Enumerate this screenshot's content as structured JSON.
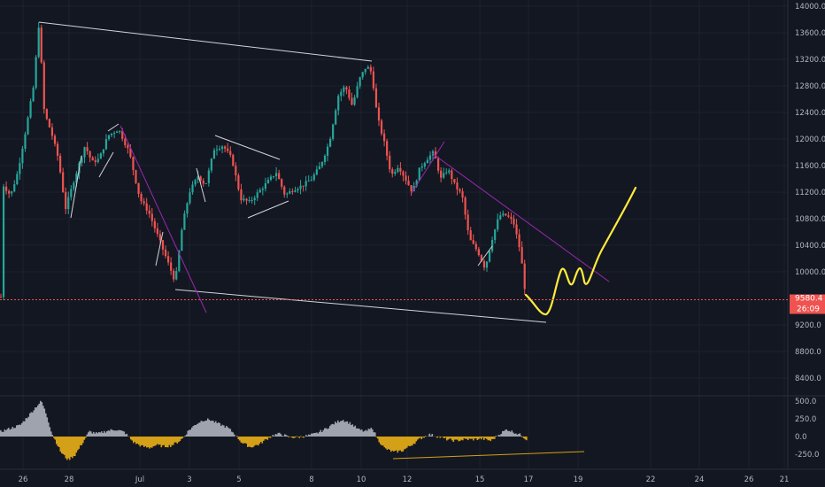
{
  "chart_data": [
    {
      "type": "candlestick",
      "title": "",
      "x_ticks": [
        "26",
        "28",
        "Jul",
        "3",
        "5",
        "8",
        "10",
        "12",
        "15",
        "17",
        "19",
        "22",
        "24",
        "26",
        "21"
      ],
      "y_ticks": [
        "14000.0",
        "13600.0",
        "13200.0",
        "12800.0",
        "12400.0",
        "12000.0",
        "11600.0",
        "11200.0",
        "10800.0",
        "10400.0",
        "10000.0",
        "9200.0",
        "8800.0",
        "8400.0"
      ],
      "y_tick_values": [
        14000,
        13600,
        13200,
        12800,
        12400,
        12000,
        11600,
        11200,
        10800,
        10400,
        10000,
        9200,
        8800,
        8400
      ],
      "ylim": [
        8200,
        14100
      ],
      "x_domain": [
        0,
        940
      ],
      "last_price_label": "9580.4",
      "countdown_label": "26:09",
      "last_price": 9580,
      "price_line_color": "#ef5350",
      "up_color": "#26a69a",
      "down_color": "#ef5350",
      "anchors": [
        [
          4,
          11300
        ],
        [
          12,
          11150
        ],
        [
          20,
          11500
        ],
        [
          30,
          12200
        ],
        [
          38,
          12800
        ],
        [
          44,
          13750
        ],
        [
          50,
          12400
        ],
        [
          58,
          12100
        ],
        [
          66,
          11700
        ],
        [
          74,
          10950
        ],
        [
          84,
          11400
        ],
        [
          96,
          11900
        ],
        [
          104,
          11650
        ],
        [
          112,
          11700
        ],
        [
          122,
          12050
        ],
        [
          134,
          12150
        ],
        [
          146,
          11800
        ],
        [
          158,
          11100
        ],
        [
          168,
          10900
        ],
        [
          178,
          10550
        ],
        [
          188,
          10200
        ],
        [
          198,
          9850
        ],
        [
          206,
          10700
        ],
        [
          214,
          11200
        ],
        [
          224,
          11450
        ],
        [
          232,
          11300
        ],
        [
          242,
          11850
        ],
        [
          252,
          11900
        ],
        [
          262,
          11700
        ],
        [
          272,
          11100
        ],
        [
          282,
          11050
        ],
        [
          292,
          11200
        ],
        [
          302,
          11350
        ],
        [
          312,
          11500
        ],
        [
          322,
          11150
        ],
        [
          332,
          11250
        ],
        [
          342,
          11300
        ],
        [
          352,
          11400
        ],
        [
          362,
          11600
        ],
        [
          372,
          11950
        ],
        [
          382,
          12650
        ],
        [
          390,
          12800
        ],
        [
          398,
          12500
        ],
        [
          406,
          12900
        ],
        [
          414,
          13100
        ],
        [
          420,
          13000
        ],
        [
          426,
          12350
        ],
        [
          434,
          11950
        ],
        [
          442,
          11450
        ],
        [
          450,
          11600
        ],
        [
          458,
          11400
        ],
        [
          466,
          11200
        ],
        [
          474,
          11550
        ],
        [
          482,
          11700
        ],
        [
          490,
          11800
        ],
        [
          498,
          11400
        ],
        [
          506,
          11550
        ],
        [
          514,
          11300
        ],
        [
          522,
          11150
        ],
        [
          530,
          10500
        ],
        [
          540,
          10300
        ],
        [
          548,
          10050
        ],
        [
          556,
          10500
        ],
        [
          564,
          10850
        ],
        [
          572,
          10850
        ],
        [
          580,
          10750
        ],
        [
          588,
          10300
        ],
        [
          594,
          9620
        ]
      ],
      "indicator": {
        "y_ticks": [
          "500.0",
          "250.0",
          "0.0",
          "-250.0"
        ],
        "y_tick_values": [
          500,
          250,
          0,
          -250
        ],
        "ylim": [
          -400,
          620
        ],
        "positive_color": "#9ea3ad",
        "negative_color": "#d4a017",
        "anchors": [
          [
            0,
            70
          ],
          [
            12,
            120
          ],
          [
            22,
            160
          ],
          [
            32,
            300
          ],
          [
            40,
            420
          ],
          [
            46,
            500
          ],
          [
            52,
            300
          ],
          [
            58,
            40
          ],
          [
            62,
            -60
          ],
          [
            68,
            -220
          ],
          [
            76,
            -330
          ],
          [
            84,
            -260
          ],
          [
            92,
            -100
          ],
          [
            100,
            70
          ],
          [
            110,
            40
          ],
          [
            120,
            80
          ],
          [
            130,
            100
          ],
          [
            140,
            60
          ],
          [
            150,
            -80
          ],
          [
            160,
            -140
          ],
          [
            168,
            -160
          ],
          [
            176,
            -120
          ],
          [
            184,
            -140
          ],
          [
            192,
            -130
          ],
          [
            200,
            -80
          ],
          [
            206,
            -20
          ],
          [
            212,
            80
          ],
          [
            220,
            170
          ],
          [
            228,
            230
          ],
          [
            236,
            240
          ],
          [
            246,
            180
          ],
          [
            256,
            130
          ],
          [
            264,
            40
          ],
          [
            272,
            -80
          ],
          [
            282,
            -150
          ],
          [
            292,
            -110
          ],
          [
            300,
            -40
          ],
          [
            308,
            20
          ],
          [
            316,
            40
          ],
          [
            326,
            -10
          ],
          [
            336,
            -10
          ],
          [
            346,
            10
          ],
          [
            356,
            40
          ],
          [
            366,
            100
          ],
          [
            376,
            180
          ],
          [
            386,
            240
          ],
          [
            396,
            180
          ],
          [
            404,
            100
          ],
          [
            412,
            70
          ],
          [
            420,
            120
          ],
          [
            426,
            -40
          ],
          [
            434,
            -170
          ],
          [
            444,
            -220
          ],
          [
            454,
            -200
          ],
          [
            464,
            -120
          ],
          [
            474,
            -30
          ],
          [
            484,
            30
          ],
          [
            494,
            0
          ],
          [
            504,
            -40
          ],
          [
            514,
            -60
          ],
          [
            524,
            -40
          ],
          [
            534,
            -40
          ],
          [
            544,
            -30
          ],
          [
            554,
            -60
          ],
          [
            564,
            40
          ],
          [
            572,
            100
          ],
          [
            580,
            60
          ],
          [
            588,
            20
          ],
          [
            594,
            -40
          ]
        ]
      }
    }
  ]
}
